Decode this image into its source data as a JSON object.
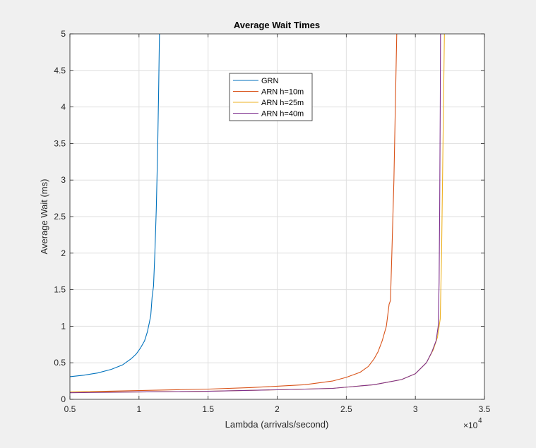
{
  "chart_data": {
    "type": "line",
    "title": "Average Wait Times",
    "xlabel": "Lambda (arrivals/second)",
    "ylabel": "Average Wait (ms)",
    "x_multiplier_label": "×10",
    "x_multiplier_exponent": "4",
    "xlim": [
      5000,
      35000
    ],
    "ylim": [
      0,
      5
    ],
    "xticks": [
      5000,
      10000,
      15000,
      20000,
      25000,
      30000,
      35000
    ],
    "xtick_labels": [
      "0.5",
      "1",
      "1.5",
      "2",
      "2.5",
      "3",
      "3.5"
    ],
    "yticks": [
      0,
      0.5,
      1,
      1.5,
      2,
      2.5,
      3,
      3.5,
      4,
      4.5,
      5
    ],
    "ytick_labels": [
      "0",
      "0.5",
      "1",
      "1.5",
      "2",
      "2.5",
      "3",
      "3.5",
      "4",
      "4.5",
      "5"
    ],
    "grid": true,
    "legend_position": "upper-center",
    "series": [
      {
        "name": "GRN",
        "color": "#0072BD",
        "points": [
          [
            5000,
            0.31
          ],
          [
            6000,
            0.33
          ],
          [
            7000,
            0.36
          ],
          [
            8000,
            0.41
          ],
          [
            8800,
            0.47
          ],
          [
            9400,
            0.55
          ],
          [
            9800,
            0.62
          ],
          [
            10100,
            0.7
          ],
          [
            10400,
            0.8
          ],
          [
            10600,
            0.92
          ],
          [
            10750,
            1.05
          ],
          [
            10850,
            1.15
          ],
          [
            10950,
            1.4
          ],
          [
            11050,
            1.55
          ],
          [
            11150,
            2.0
          ],
          [
            11250,
            2.6
          ],
          [
            11350,
            3.4
          ],
          [
            11420,
            4.2
          ],
          [
            11480,
            5.0
          ]
        ]
      },
      {
        "name": "ARN h=10m",
        "color": "#D95319",
        "points": [
          [
            5000,
            0.1
          ],
          [
            10000,
            0.12
          ],
          [
            15000,
            0.14
          ],
          [
            18000,
            0.16
          ],
          [
            20000,
            0.18
          ],
          [
            22000,
            0.2
          ],
          [
            24000,
            0.25
          ],
          [
            25000,
            0.3
          ],
          [
            26000,
            0.37
          ],
          [
            26600,
            0.45
          ],
          [
            27000,
            0.55
          ],
          [
            27300,
            0.65
          ],
          [
            27600,
            0.8
          ],
          [
            27900,
            1.0
          ],
          [
            28100,
            1.3
          ],
          [
            28200,
            1.35
          ],
          [
            28300,
            2.0
          ],
          [
            28450,
            3.0
          ],
          [
            28550,
            4.0
          ],
          [
            28600,
            4.5
          ],
          [
            28650,
            5.0
          ]
        ]
      },
      {
        "name": "ARN h=25m",
        "color": "#EDB120",
        "points": [
          [
            5000,
            0.1
          ],
          [
            10000,
            0.1
          ],
          [
            15000,
            0.11
          ],
          [
            20000,
            0.13
          ],
          [
            24000,
            0.15
          ],
          [
            27000,
            0.2
          ],
          [
            29000,
            0.27
          ],
          [
            30000,
            0.35
          ],
          [
            30800,
            0.5
          ],
          [
            31300,
            0.68
          ],
          [
            31600,
            0.85
          ],
          [
            31800,
            1.1
          ],
          [
            31900,
            2.0
          ],
          [
            32000,
            3.5
          ],
          [
            32100,
            5.0
          ]
        ]
      },
      {
        "name": "ARN h=40m",
        "color": "#7E2F8E",
        "points": [
          [
            5000,
            0.09
          ],
          [
            10000,
            0.1
          ],
          [
            15000,
            0.11
          ],
          [
            20000,
            0.13
          ],
          [
            24000,
            0.15
          ],
          [
            27000,
            0.2
          ],
          [
            29000,
            0.27
          ],
          [
            30000,
            0.35
          ],
          [
            30800,
            0.5
          ],
          [
            31200,
            0.65
          ],
          [
            31500,
            0.8
          ],
          [
            31650,
            1.0
          ],
          [
            31720,
            1.6
          ],
          [
            31760,
            2.6
          ],
          [
            31800,
            4.0
          ],
          [
            31820,
            5.0
          ]
        ]
      }
    ]
  }
}
